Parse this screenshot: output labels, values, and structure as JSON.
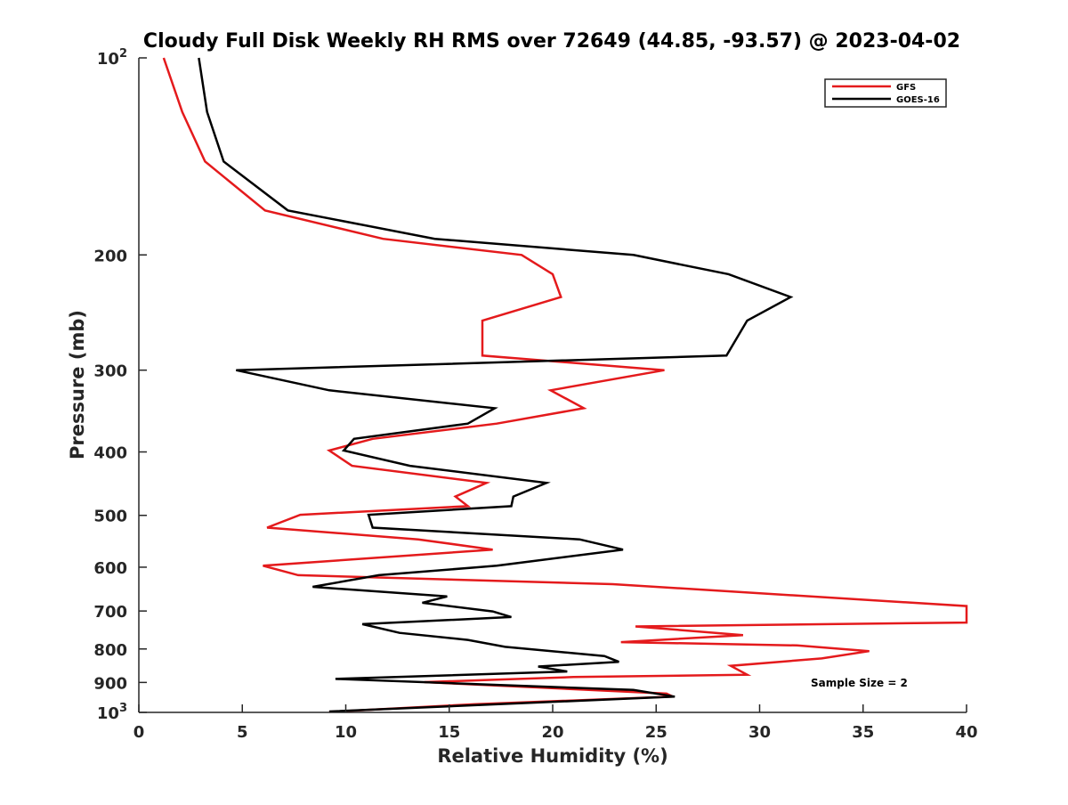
{
  "chart_data": {
    "type": "line",
    "title": "Cloudy Full Disk Weekly RH RMS over 72649 (44.85, -93.57) @ 2023-04-02",
    "xlabel": "Relative Humidity (%)",
    "ylabel": "Pressure (mb)",
    "xlim": [
      0,
      40
    ],
    "ylim": [
      100,
      1000
    ],
    "yscale": "log",
    "y_reversed": true,
    "grid": false,
    "legend_position": "top-right",
    "x_ticks": [
      {
        "value": 0,
        "label": "0"
      },
      {
        "value": 5,
        "label": "5"
      },
      {
        "value": 10,
        "label": "10"
      },
      {
        "value": 15,
        "label": "15"
      },
      {
        "value": 20,
        "label": "20"
      },
      {
        "value": 25,
        "label": "25"
      },
      {
        "value": 30,
        "label": "30"
      },
      {
        "value": 35,
        "label": "35"
      },
      {
        "value": 40,
        "label": "40"
      }
    ],
    "y_ticks": [
      {
        "value": 100,
        "label": "10",
        "sup": "2"
      },
      {
        "value": 200,
        "label": "200",
        "sup": ""
      },
      {
        "value": 300,
        "label": "300",
        "sup": ""
      },
      {
        "value": 400,
        "label": "400",
        "sup": ""
      },
      {
        "value": 500,
        "label": "500",
        "sup": ""
      },
      {
        "value": 600,
        "label": "600",
        "sup": ""
      },
      {
        "value": 700,
        "label": "700",
        "sup": ""
      },
      {
        "value": 800,
        "label": "800",
        "sup": ""
      },
      {
        "value": 900,
        "label": "900",
        "sup": ""
      },
      {
        "value": 1000,
        "label": "10",
        "sup": "3"
      }
    ],
    "annotation": "Sample Size = 2",
    "series": [
      {
        "name": "GFS",
        "color": "#e41a1c",
        "points": [
          [
            1.2,
            100
          ],
          [
            2.1,
            121
          ],
          [
            3.2,
            144
          ],
          [
            6.1,
            171
          ],
          [
            11.8,
            189
          ],
          [
            18.5,
            200
          ],
          [
            20.0,
            214
          ],
          [
            20.4,
            232
          ],
          [
            16.6,
            252
          ],
          [
            16.6,
            285
          ],
          [
            25.4,
            300
          ],
          [
            19.9,
            322
          ],
          [
            21.5,
            343
          ],
          [
            17.3,
            362
          ],
          [
            11.3,
            382
          ],
          [
            9.2,
            398
          ],
          [
            10.3,
            420
          ],
          [
            16.8,
            446
          ],
          [
            15.3,
            468
          ],
          [
            15.9,
            484
          ],
          [
            7.8,
            499
          ],
          [
            6.2,
            522
          ],
          [
            13.5,
            544
          ],
          [
            17.1,
            564
          ],
          [
            6.0,
            597
          ],
          [
            7.7,
            617
          ],
          [
            22.9,
            637
          ],
          [
            40.0,
            688
          ],
          [
            40.0,
            729
          ],
          [
            24.0,
            739
          ],
          [
            29.2,
            762
          ],
          [
            23.3,
            781
          ],
          [
            31.8,
            790
          ],
          [
            35.3,
            806
          ],
          [
            33.0,
            827
          ],
          [
            28.6,
            849
          ],
          [
            29.4,
            876
          ],
          [
            21.0,
            883
          ],
          [
            13.8,
            899
          ],
          [
            25.5,
            936
          ],
          [
            25.8,
            946
          ],
          [
            16.2,
            972
          ],
          [
            9.2,
            998
          ]
        ]
      },
      {
        "name": "GOES-16",
        "color": "#000000",
        "points": [
          [
            2.9,
            100
          ],
          [
            3.3,
            121
          ],
          [
            4.1,
            144
          ],
          [
            7.2,
            171
          ],
          [
            14.3,
            189
          ],
          [
            23.9,
            200
          ],
          [
            28.5,
            214
          ],
          [
            31.5,
            232
          ],
          [
            29.4,
            252
          ],
          [
            28.4,
            285
          ],
          [
            4.7,
            300
          ],
          [
            9.2,
            322
          ],
          [
            17.2,
            343
          ],
          [
            15.9,
            362
          ],
          [
            10.4,
            382
          ],
          [
            9.9,
            398
          ],
          [
            13.1,
            420
          ],
          [
            19.7,
            446
          ],
          [
            18.1,
            468
          ],
          [
            18.0,
            484
          ],
          [
            11.1,
            499
          ],
          [
            11.3,
            522
          ],
          [
            21.3,
            544
          ],
          [
            23.4,
            564
          ],
          [
            17.3,
            597
          ],
          [
            11.6,
            617
          ],
          [
            8.4,
            643
          ],
          [
            14.9,
            665
          ],
          [
            13.7,
            680
          ],
          [
            17.1,
            701
          ],
          [
            18.0,
            715
          ],
          [
            10.8,
            733
          ],
          [
            12.6,
            756
          ],
          [
            15.9,
            775
          ],
          [
            17.7,
            794
          ],
          [
            22.5,
            820
          ],
          [
            23.2,
            837
          ],
          [
            19.3,
            851
          ],
          [
            20.7,
            866
          ],
          [
            9.5,
            889
          ],
          [
            23.9,
            924
          ],
          [
            25.9,
            946
          ],
          [
            9.2,
            997
          ]
        ]
      }
    ]
  }
}
